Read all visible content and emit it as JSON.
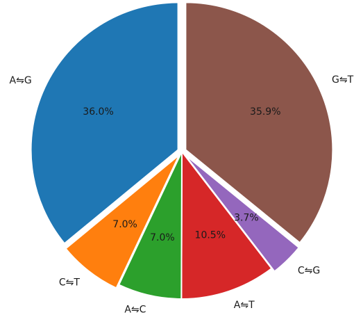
{
  "chart_data": {
    "type": "pie",
    "title": "",
    "start_angle_deg": 90,
    "direction": "clockwise",
    "slices": [
      {
        "label": "G⇋T",
        "value": 35.9,
        "pct_label": "35.9%",
        "color": "#8c564b",
        "explode": true
      },
      {
        "label": "C⇋G",
        "value": 3.7,
        "pct_label": "3.7%",
        "color": "#9467bd",
        "explode": true
      },
      {
        "label": "A⇋T",
        "value": 10.5,
        "pct_label": "10.5%",
        "color": "#d62728",
        "explode": false
      },
      {
        "label": "A⇋C",
        "value": 7.0,
        "pct_label": "7.0%",
        "color": "#2ca02c",
        "explode": false
      },
      {
        "label": "C⇋T",
        "value": 7.0,
        "pct_label": "7.0%",
        "color": "#ff7f0e",
        "explode": true
      },
      {
        "label": "A⇋G",
        "value": 36.0,
        "pct_label": "36.0%",
        "color": "#1f77b4",
        "explode": true
      }
    ]
  }
}
